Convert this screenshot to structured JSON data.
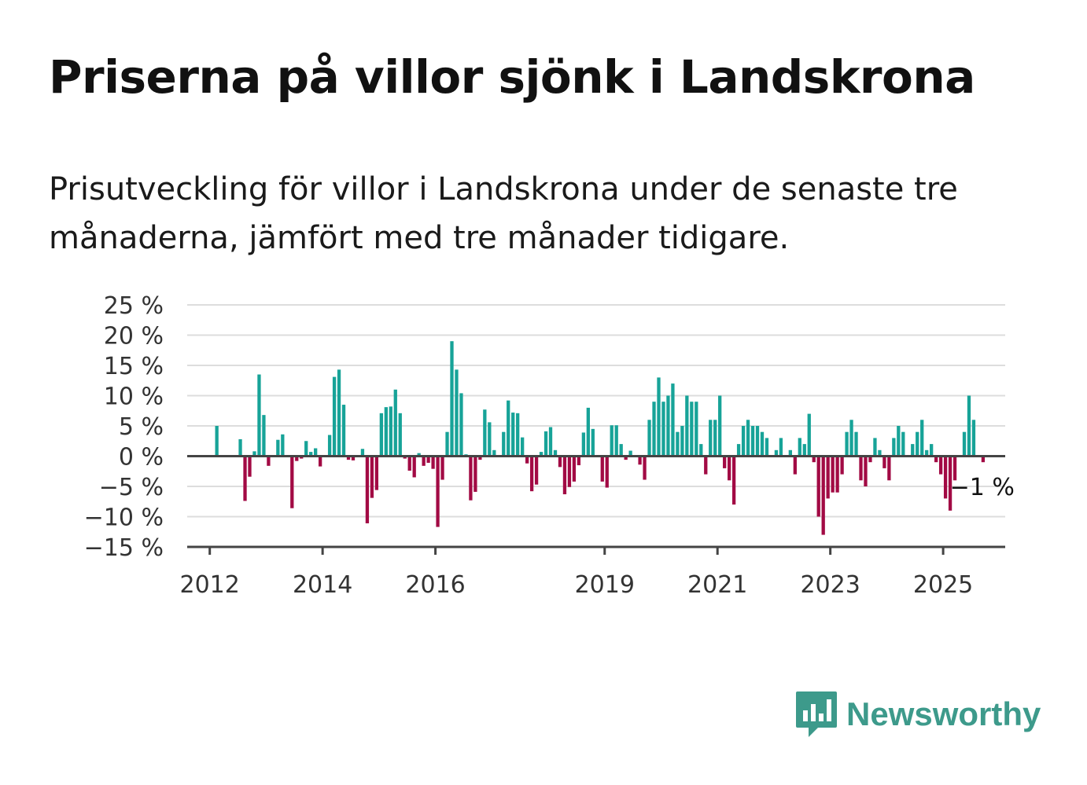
{
  "title": "Priserna på villor sjönk i Landskrona",
  "subtitle": "Prisutveckling för villor i Landskrona under de senaste tre månaderna, jämfört med tre månader tidigare.",
  "brand": {
    "name": "Newsworthy",
    "icon": "bar-chart-speech-bubble-icon",
    "color": "#3d9a8b"
  },
  "colors": {
    "positive": "#17a398",
    "negative": "#a20a44",
    "grid": "#dddddd",
    "axis": "#444444"
  },
  "chart_data": {
    "type": "bar",
    "x_start": "2012-01",
    "x_step": "month",
    "values": [
      0,
      5,
      0,
      0,
      0,
      0,
      2.8,
      -7.4,
      -3.4,
      0.8,
      13.5,
      6.8,
      -1.6,
      0,
      2.7,
      3.6,
      0,
      -8.6,
      -0.8,
      -0.4,
      2.5,
      0.7,
      1.3,
      -1.7,
      0,
      3.5,
      13.1,
      14.3,
      8.5,
      -0.6,
      -0.7,
      0,
      1.2,
      -11.1,
      -6.9,
      -5.6,
      7.1,
      8.1,
      8.2,
      11,
      7.1,
      -0.4,
      -2.4,
      -3.5,
      0.5,
      -1.6,
      -1.1,
      -2.1,
      -11.7,
      -3.9,
      4,
      19,
      14.3,
      10.4,
      0.3,
      -7.3,
      -5.9,
      -0.6,
      7.7,
      5.6,
      1,
      0,
      4,
      9.2,
      7.2,
      7.1,
      3.1,
      -1.2,
      -5.8,
      -4.7,
      0.7,
      4.1,
      4.8,
      1,
      -1.8,
      -6.3,
      -5.1,
      -4.2,
      -1.5,
      3.9,
      8,
      4.5,
      0,
      -4.2,
      -5.2,
      5.1,
      5.1,
      2,
      -0.6,
      0.9,
      0,
      -1.4,
      -3.9,
      6,
      9,
      13,
      9,
      10,
      12,
      4,
      5,
      10,
      9,
      9,
      2,
      -3,
      6,
      6,
      10,
      -2,
      -4,
      -8,
      2,
      5,
      6,
      5,
      5,
      4,
      3,
      0,
      1,
      3,
      0,
      1,
      -3,
      3,
      2,
      7,
      -1,
      -10,
      -13,
      -7,
      -6,
      -6,
      -3,
      4,
      6,
      4,
      -4,
      -5,
      -1,
      3,
      1,
      -2,
      -4,
      3,
      5,
      4,
      0,
      2,
      4,
      6,
      1,
      2,
      -1,
      -3,
      -7,
      -9,
      -4,
      0,
      4,
      10,
      6,
      0,
      -1
    ],
    "annotation": {
      "label": "−1 %",
      "value": -1
    },
    "x_ticks": [
      {
        "label": "2012",
        "x": 2012.0
      },
      {
        "label": "2014",
        "x": 2014.0
      },
      {
        "label": "2016",
        "x": 2016.0
      },
      {
        "label": "2019",
        "x": 2019.0
      },
      {
        "label": "2021",
        "x": 2021.0
      },
      {
        "label": "2023",
        "x": 2023.0
      },
      {
        "label": "2025",
        "x": 2025.0
      }
    ],
    "y_ticks": [
      {
        "label": "25 %",
        "value": 25
      },
      {
        "label": "20 %",
        "value": 20
      },
      {
        "label": "15 %",
        "value": 15
      },
      {
        "label": "10 %",
        "value": 10
      },
      {
        "label": "5 %",
        "value": 5
      },
      {
        "label": "0 %",
        "value": 0
      },
      {
        "label": "−5 %",
        "value": -5
      },
      {
        "label": "−10 %",
        "value": -10
      },
      {
        "label": "−15 %",
        "value": -15
      }
    ],
    "ylim": [
      -15,
      25
    ],
    "xlim": [
      2011.6,
      2026.1
    ],
    "grid": true,
    "legend": "none"
  }
}
